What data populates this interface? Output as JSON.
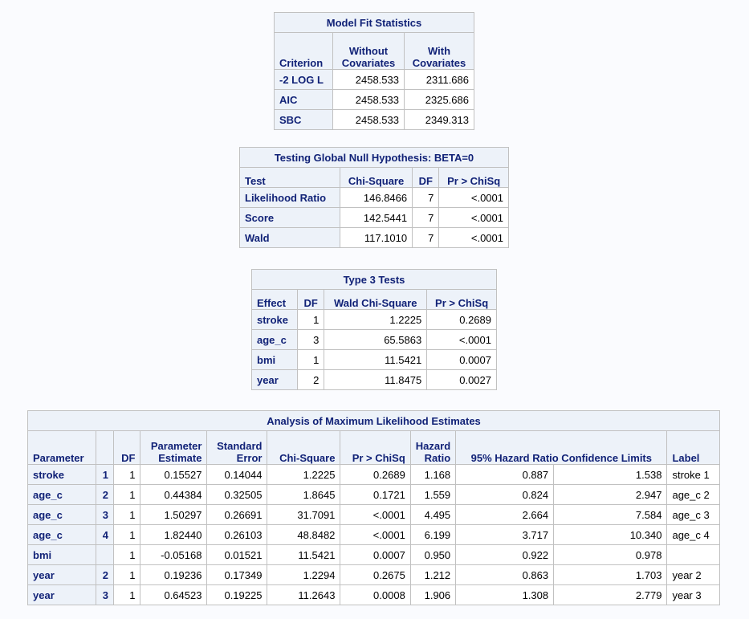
{
  "fit": {
    "title": "Model Fit Statistics",
    "headers": [
      "Criterion",
      "Without Covariates",
      "With Covariates"
    ],
    "rows": [
      [
        "-2 LOG L",
        "2458.533",
        "2311.686"
      ],
      [
        "AIC",
        "2458.533",
        "2325.686"
      ],
      [
        "SBC",
        "2458.533",
        "2349.313"
      ]
    ]
  },
  "global": {
    "title": "Testing Global Null Hypothesis: BETA=0",
    "headers": [
      "Test",
      "Chi-Square",
      "DF",
      "Pr > ChiSq"
    ],
    "rows": [
      [
        "Likelihood Ratio",
        "146.8466",
        "7",
        "<.0001"
      ],
      [
        "Score",
        "142.5441",
        "7",
        "<.0001"
      ],
      [
        "Wald",
        "117.1010",
        "7",
        "<.0001"
      ]
    ]
  },
  "type3": {
    "title": "Type 3 Tests",
    "headers": [
      "Effect",
      "DF",
      "Wald Chi-Square",
      "Pr > ChiSq"
    ],
    "rows": [
      [
        "stroke",
        "1",
        "1.2225",
        "0.2689"
      ],
      [
        "age_c",
        "3",
        "65.5863",
        "<.0001"
      ],
      [
        "bmi",
        "1",
        "11.5421",
        "0.0007"
      ],
      [
        "year",
        "2",
        "11.8475",
        "0.0027"
      ]
    ]
  },
  "mle": {
    "title": "Analysis of Maximum Likelihood Estimates",
    "headers": [
      "Parameter",
      "",
      "DF",
      "Parameter Estimate",
      "Standard Error",
      "Chi-Square",
      "Pr > ChiSq",
      "Hazard Ratio",
      "95% Hazard Ratio Confidence Limits",
      "Label"
    ],
    "rows": [
      [
        "stroke",
        "1",
        "1",
        "0.15527",
        "0.14044",
        "1.2225",
        "0.2689",
        "1.168",
        "0.887",
        "1.538",
        "stroke 1"
      ],
      [
        "age_c",
        "2",
        "1",
        "0.44384",
        "0.32505",
        "1.8645",
        "0.1721",
        "1.559",
        "0.824",
        "2.947",
        "age_c 2"
      ],
      [
        "age_c",
        "3",
        "1",
        "1.50297",
        "0.26691",
        "31.7091",
        "<.0001",
        "4.495",
        "2.664",
        "7.584",
        "age_c 3"
      ],
      [
        "age_c",
        "4",
        "1",
        "1.82440",
        "0.26103",
        "48.8482",
        "<.0001",
        "6.199",
        "3.717",
        "10.340",
        "age_c 4"
      ],
      [
        "bmi",
        "",
        "1",
        "-0.05168",
        "0.01521",
        "11.5421",
        "0.0007",
        "0.950",
        "0.922",
        "0.978",
        ""
      ],
      [
        "year",
        "2",
        "1",
        "0.19236",
        "0.17349",
        "1.2294",
        "0.2675",
        "1.212",
        "0.863",
        "1.703",
        "year 2"
      ],
      [
        "year",
        "3",
        "1",
        "0.64523",
        "0.19225",
        "11.2643",
        "0.0008",
        "1.906",
        "1.308",
        "2.779",
        "year 3"
      ]
    ]
  }
}
